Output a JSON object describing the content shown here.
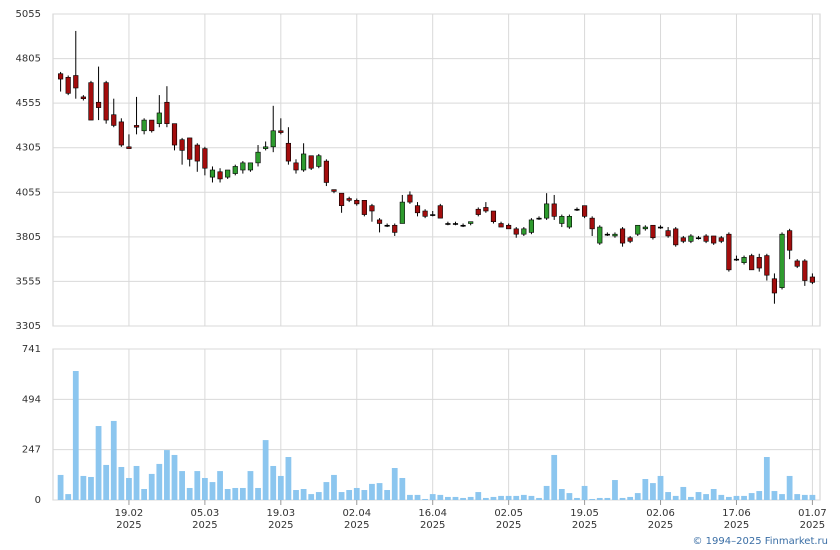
{
  "chart_data": [
    {
      "type": "candlestick",
      "up_color": "#2e9b2e",
      "down_color": "#a30d0d",
      "flat_color": "#000000",
      "xlim": [
        -1,
        100
      ],
      "ylim": [
        3305,
        5055
      ],
      "yticks": [
        3305,
        3555,
        3805,
        4055,
        4305,
        4555,
        4805,
        5055
      ],
      "grid": true,
      "open": [
        4720,
        4700,
        4710,
        4590,
        4670,
        4560,
        4670,
        4490,
        4450,
        4310,
        4430,
        4400,
        4460,
        4440,
        4560,
        4440,
        4350,
        4360,
        4320,
        4300,
        4140,
        4170,
        4140,
        4160,
        4180,
        4180,
        4220,
        4300,
        4310,
        4400,
        4330,
        4220,
        4180,
        4260,
        4200,
        4230,
        4070,
        4050,
        4020,
        4010,
        4010,
        3980,
        3900,
        3870,
        3870,
        3880,
        4040,
        3980,
        3950,
        3930,
        3980,
        3880,
        3880,
        3870,
        3880,
        3960,
        3970,
        3950,
        3880,
        3870,
        3850,
        3820,
        3830,
        3910,
        3910,
        3990,
        3880,
        3860,
        3960,
        3980,
        3910,
        3770,
        3820,
        3810,
        3850,
        3800,
        3820,
        3850,
        3870,
        3860,
        3840,
        3850,
        3800,
        3780,
        3800,
        3810,
        3810,
        3800,
        3820,
        3680,
        3660,
        3700,
        3690,
        3700,
        3570,
        3520,
        3840,
        3670,
        3670,
        3580
      ],
      "high": [
        4730,
        4710,
        4960,
        4600,
        4680,
        4760,
        4680,
        4580,
        4470,
        4380,
        4590,
        4470,
        4460,
        4600,
        4650,
        4440,
        4360,
        4360,
        4330,
        4310,
        4200,
        4190,
        4180,
        4210,
        4230,
        4220,
        4320,
        4340,
        4540,
        4470,
        4420,
        4240,
        4330,
        4260,
        4270,
        4240,
        4070,
        4050,
        4030,
        4020,
        4010,
        3990,
        3910,
        3880,
        3880,
        4040,
        4060,
        4000,
        3960,
        3950,
        3990,
        3890,
        3890,
        3880,
        3890,
        3970,
        4000,
        3950,
        3890,
        3880,
        3860,
        3860,
        3910,
        3920,
        4050,
        4040,
        3930,
        3930,
        3970,
        3980,
        3920,
        3870,
        3830,
        3830,
        3860,
        3810,
        3870,
        3870,
        3870,
        3870,
        3860,
        3860,
        3810,
        3820,
        3810,
        3820,
        3810,
        3810,
        3830,
        3700,
        3700,
        3710,
        3710,
        3710,
        3600,
        3830,
        3850,
        3680,
        3680,
        3600
      ],
      "low": [
        4620,
        4600,
        4580,
        4570,
        4460,
        4460,
        4440,
        4420,
        4310,
        4300,
        4380,
        4380,
        4390,
        4420,
        4420,
        4290,
        4210,
        4200,
        4170,
        4150,
        4110,
        4110,
        4130,
        4150,
        4160,
        4170,
        4200,
        4290,
        4280,
        4380,
        4210,
        4160,
        4170,
        4180,
        4190,
        4090,
        4050,
        3940,
        4000,
        3980,
        3920,
        3890,
        3830,
        3860,
        3810,
        3880,
        3990,
        3920,
        3910,
        3920,
        3910,
        3870,
        3870,
        3860,
        3870,
        3920,
        3940,
        3880,
        3860,
        3850,
        3800,
        3810,
        3820,
        3900,
        3900,
        3900,
        3860,
        3850,
        3950,
        3910,
        3810,
        3760,
        3810,
        3800,
        3750,
        3770,
        3810,
        3840,
        3790,
        3850,
        3800,
        3750,
        3770,
        3770,
        3790,
        3770,
        3760,
        3770,
        3610,
        3670,
        3650,
        3620,
        3610,
        3560,
        3430,
        3510,
        3680,
        3630,
        3530,
        3540
      ],
      "close": [
        4690,
        4610,
        4640,
        4580,
        4460,
        4530,
        4460,
        4430,
        4320,
        4300,
        4420,
        4460,
        4400,
        4500,
        4440,
        4320,
        4290,
        4240,
        4230,
        4190,
        4180,
        4130,
        4180,
        4200,
        4220,
        4220,
        4280,
        4310,
        4400,
        4390,
        4230,
        4180,
        4270,
        4190,
        4260,
        4110,
        4060,
        3980,
        4010,
        3990,
        3930,
        3950,
        3880,
        3870,
        3830,
        4000,
        4000,
        3940,
        3920,
        3930,
        3910,
        3880,
        3880,
        3870,
        3890,
        3930,
        3950,
        3890,
        3860,
        3850,
        3820,
        3850,
        3900,
        3910,
        3990,
        3920,
        3920,
        3920,
        3960,
        3920,
        3850,
        3860,
        3820,
        3820,
        3770,
        3780,
        3870,
        3860,
        3800,
        3860,
        3810,
        3760,
        3780,
        3810,
        3800,
        3780,
        3770,
        3780,
        3620,
        3680,
        3690,
        3620,
        3630,
        3590,
        3490,
        3820,
        3730,
        3640,
        3560,
        3550
      ]
    },
    {
      "type": "bar",
      "color": "#8cc6ef",
      "xlim": [
        -1,
        100
      ],
      "xticks": [
        {
          "value": 9,
          "label": [
            "19.02",
            "2025"
          ]
        },
        {
          "value": 19,
          "label": [
            "05.03",
            "2025"
          ]
        },
        {
          "value": 29,
          "label": [
            "19.03",
            "2025"
          ]
        },
        {
          "value": 39,
          "label": [
            "02.04",
            "2025"
          ]
        },
        {
          "value": 49,
          "label": [
            "16.04",
            "2025"
          ]
        },
        {
          "value": 59,
          "label": [
            "02.05",
            "2025"
          ]
        },
        {
          "value": 69,
          "label": [
            "19.05",
            "2025"
          ]
        },
        {
          "value": 79,
          "label": [
            "02.06",
            "2025"
          ]
        },
        {
          "value": 89,
          "label": [
            "17.06",
            "2025"
          ]
        },
        {
          "value": 99,
          "label": [
            "01.07",
            "2025"
          ]
        }
      ],
      "ylim": [
        0,
        741
      ],
      "yticks": [
        0,
        247,
        494,
        741
      ],
      "grid": true,
      "values": [
        123,
        29,
        633,
        118,
        113,
        363,
        172,
        388,
        162,
        108,
        167,
        54,
        128,
        177,
        245,
        221,
        142,
        59,
        142,
        108,
        88,
        142,
        54,
        59,
        59,
        142,
        59,
        294,
        167,
        118,
        211,
        49,
        54,
        29,
        39,
        88,
        123,
        39,
        49,
        59,
        49,
        79,
        83,
        49,
        157,
        108,
        25,
        25,
        5,
        29,
        25,
        15,
        15,
        10,
        15,
        39,
        10,
        15,
        20,
        20,
        20,
        25,
        20,
        10,
        69,
        221,
        54,
        34,
        10,
        69,
        5,
        10,
        10,
        98,
        10,
        15,
        34,
        103,
        83,
        118,
        39,
        20,
        64,
        15,
        39,
        29,
        54,
        25,
        15,
        20,
        20,
        34,
        44,
        211,
        44,
        29,
        118,
        29,
        25,
        25
      ]
    }
  ],
  "footer": "© 1994–2025 Finmarket.ru"
}
